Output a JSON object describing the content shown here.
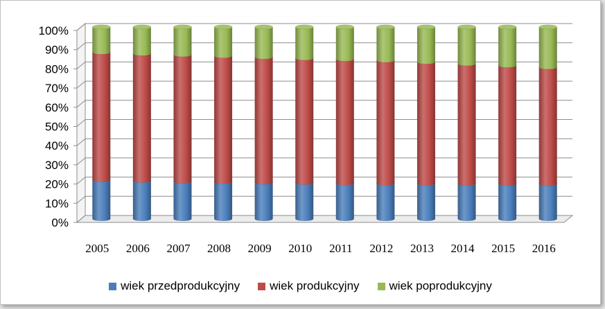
{
  "chart_data": {
    "type": "bar",
    "stacked": true,
    "percent": true,
    "title": "",
    "xlabel": "",
    "ylabel": "",
    "ylim": [
      0,
      100
    ],
    "yticks": [
      "0%",
      "10%",
      "20%",
      "30%",
      "40%",
      "50%",
      "60%",
      "70%",
      "80%",
      "90%",
      "100%"
    ],
    "categories": [
      "2005",
      "2006",
      "2007",
      "2008",
      "2009",
      "2010",
      "2011",
      "2012",
      "2013",
      "2014",
      "2015",
      "2016"
    ],
    "series": [
      {
        "name": "wiek przedprodukcyjny",
        "color": "#4a7ebb",
        "values": [
          20.4,
          20.0,
          19.6,
          19.3,
          19.1,
          18.9,
          18.7,
          18.6,
          18.5,
          18.4,
          18.4,
          18.3
        ]
      },
      {
        "name": "wiek produkcyjny",
        "color": "#be4b48",
        "values": [
          66.5,
          66.2,
          66.0,
          65.7,
          65.3,
          64.9,
          64.6,
          64.1,
          63.3,
          62.5,
          61.6,
          60.8
        ]
      },
      {
        "name": "wiek poprodukcyjny",
        "color": "#98b954",
        "values": [
          13.1,
          13.8,
          14.4,
          15.0,
          15.6,
          16.2,
          16.7,
          17.3,
          18.2,
          19.1,
          20.0,
          20.9
        ]
      }
    ],
    "legend_position": "bottom",
    "grid": true
  }
}
